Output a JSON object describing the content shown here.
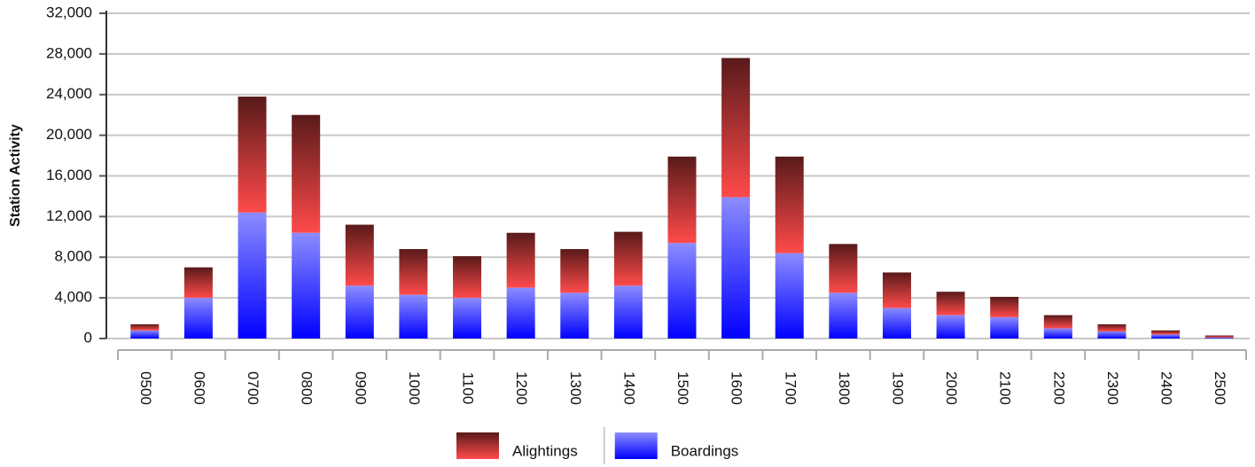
{
  "chart_data": {
    "type": "stacked-bar",
    "y_label": "Station Activity",
    "categories": [
      "0500",
      "0600",
      "0700",
      "0800",
      "0900",
      "1000",
      "1100",
      "1200",
      "1300",
      "1400",
      "1500",
      "1600",
      "1700",
      "1800",
      "1900",
      "2000",
      "2100",
      "2200",
      "2300",
      "2400",
      "2500"
    ],
    "series": [
      {
        "name": "Alightings",
        "color": "#ff4a4a",
        "values": [
          600,
          3000,
          11400,
          11600,
          6000,
          4500,
          4100,
          5400,
          4300,
          5300,
          8500,
          13700,
          9500,
          4800,
          3500,
          2300,
          2000,
          1300,
          700,
          400,
          200
        ]
      },
      {
        "name": "Boardings",
        "color": "#0000ff",
        "values": [
          800,
          4000,
          12400,
          10400,
          5200,
          4300,
          4000,
          5000,
          4500,
          5200,
          9400,
          13900,
          8400,
          4500,
          3000,
          2300,
          2100,
          1000,
          700,
          400,
          100
        ]
      }
    ],
    "ylim": [
      0,
      32000
    ],
    "yticks": [
      0,
      {
        "value": 4000,
        "label": "4,000"
      },
      {
        "value": 8000,
        "label": "8,000"
      },
      {
        "value": 12000,
        "label": "12,000"
      },
      {
        "value": 16000,
        "label": "16,000"
      },
      {
        "value": 20000,
        "label": "20,000"
      },
      {
        "value": 24000,
        "label": "24,000"
      },
      {
        "value": 28000,
        "label": "28,000"
      },
      {
        "value": 32000,
        "label": "32,000"
      }
    ],
    "grid": true
  }
}
